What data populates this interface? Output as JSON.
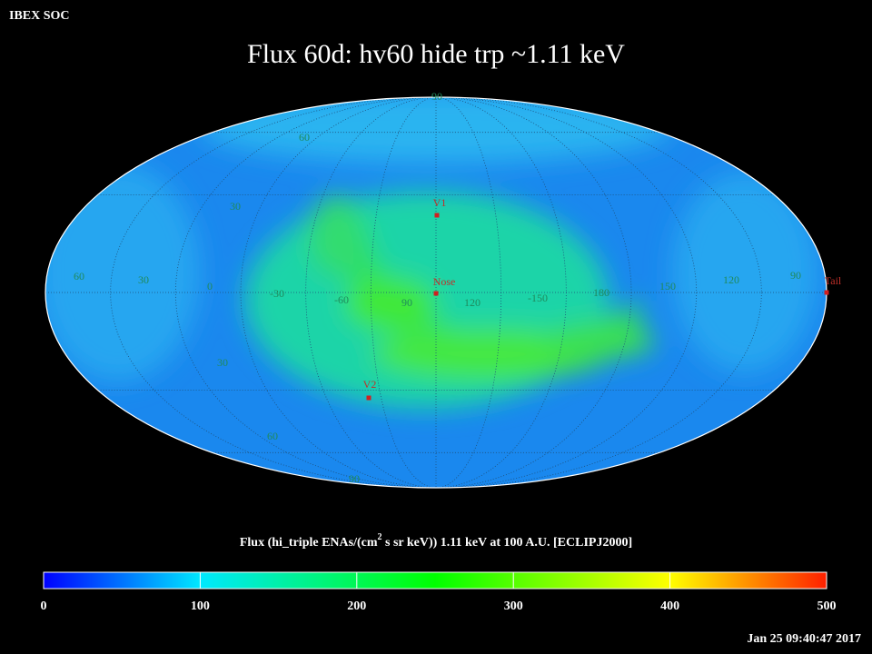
{
  "header": "IBEX SOC",
  "title": "Flux   60d: hv60 hide trp ~1.11 keV",
  "graticule": {
    "longitude_labels": [
      60,
      30,
      0,
      -30,
      -60,
      90,
      120,
      -150,
      180,
      150,
      120,
      90
    ],
    "latitude_labels": [
      90,
      60,
      30,
      30,
      60,
      90
    ]
  },
  "points": [
    {
      "label": "V1"
    },
    {
      "label": "Nose"
    },
    {
      "label": "V2"
    },
    {
      "label": "Tail"
    }
  ],
  "colorbar": {
    "title_parts": [
      "Flux (hi_triple ENAs/(cm",
      "2",
      " s sr keV))  1.11 keV at 100 A.U. [ECLIPJ2000]"
    ],
    "range": [
      0,
      500
    ],
    "ticks": [
      0,
      100,
      200,
      300,
      400,
      500
    ]
  },
  "timestamp": "Jan 25 09:40:47 2017"
}
